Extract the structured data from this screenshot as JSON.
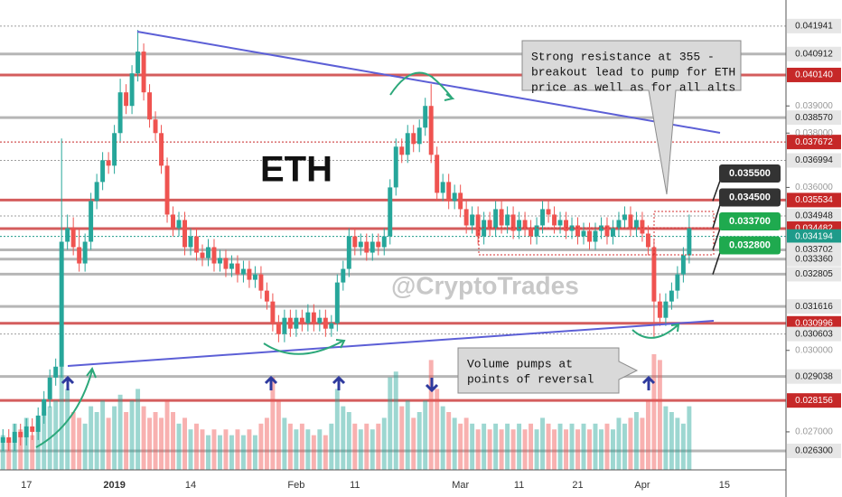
{
  "chart_data": {
    "type": "candlestick",
    "title": "ETH",
    "watermark": "@CryptoTrades",
    "up_color": "#26a69a",
    "down_color": "#ef5350",
    "categories": [
      null,
      null,
      null,
      null,
      "17",
      null,
      null,
      null,
      null,
      null,
      null,
      null,
      null,
      null,
      null,
      null,
      null,
      null,
      null,
      "2019",
      null,
      null,
      null,
      null,
      null,
      null,
      null,
      null,
      null,
      null,
      null,
      null,
      "14",
      null,
      null,
      null,
      null,
      null,
      null,
      null,
      null,
      null,
      null,
      null,
      null,
      null,
      null,
      null,
      null,
      null,
      "Feb",
      null,
      null,
      null,
      null,
      null,
      null,
      null,
      null,
      null,
      "11",
      null,
      null,
      null,
      null,
      null,
      null,
      null,
      null,
      null,
      null,
      null,
      null,
      null,
      null,
      null,
      null,
      null,
      "Mar",
      null,
      null,
      null,
      null,
      null,
      null,
      null,
      null,
      null,
      "11",
      null,
      null,
      null,
      null,
      null,
      null,
      null,
      null,
      null,
      "21",
      null,
      null,
      null,
      null,
      null,
      null,
      null,
      null,
      null,
      null,
      "Apr",
      null,
      null,
      null,
      null,
      null,
      null,
      null,
      null,
      null,
      null,
      null,
      null,
      null,
      "15",
      null,
      null,
      null,
      null,
      null,
      null,
      null,
      null,
      null,
      null
    ],
    "open": [
      0.0266,
      0.0268,
      0.0266,
      0.027,
      0.0268,
      0.0272,
      0.027,
      0.0276,
      0.0282,
      0.029,
      0.0294,
      0.034,
      0.0345,
      0.0338,
      0.0332,
      0.034,
      0.0355,
      0.0362,
      0.037,
      0.0368,
      0.038,
      0.0395,
      0.039,
      0.0402,
      0.041,
      0.0395,
      0.0385,
      0.038,
      0.0368,
      0.035,
      0.0345,
      0.0348,
      0.0338,
      0.0342,
      0.0336,
      0.0334,
      0.0338,
      0.0332,
      0.0334,
      0.033,
      0.0332,
      0.0328,
      0.033,
      0.0326,
      0.0328,
      0.0322,
      0.0318,
      0.031,
      0.0306,
      0.0312,
      0.0308,
      0.0312,
      0.031,
      0.0314,
      0.031,
      0.0312,
      0.0308,
      0.031,
      0.0325,
      0.033,
      0.0342,
      0.0338,
      0.034,
      0.0336,
      0.034,
      0.0338,
      0.0342,
      0.036,
      0.0375,
      0.0372,
      0.038,
      0.0376,
      0.0382,
      0.039,
      0.0372,
      0.0358,
      0.0362,
      0.0355,
      0.0358,
      0.0352,
      0.0346,
      0.035,
      0.0342,
      0.0348,
      0.0345,
      0.0352,
      0.0346,
      0.035,
      0.0344,
      0.0348,
      0.0345,
      0.0342,
      0.0346,
      0.0352,
      0.035,
      0.0346,
      0.0348,
      0.0344,
      0.0346,
      0.0342,
      0.0344,
      0.034,
      0.0344,
      0.0346,
      0.0342,
      0.0345,
      0.0348,
      0.035,
      0.0345,
      0.0348,
      0.0343,
      0.0338,
      0.0318,
      0.0312,
      0.0318,
      0.0322,
      0.0328,
      0.0335,
      null,
      null,
      null,
      null,
      null,
      null,
      null,
      null,
      null,
      null,
      null,
      null,
      null,
      null,
      null,
      null
    ],
    "high": [
      0.0271,
      0.0271,
      0.0273,
      0.0273,
      0.0275,
      0.0275,
      0.0279,
      0.0285,
      0.0293,
      0.0297,
      0.0378,
      0.035,
      0.0349,
      0.0345,
      0.0343,
      0.0358,
      0.0365,
      0.0373,
      0.0373,
      0.0383,
      0.04,
      0.0398,
      0.0405,
      0.0418,
      0.0413,
      0.0398,
      0.0388,
      0.0383,
      0.0371,
      0.0353,
      0.0351,
      0.0351,
      0.0345,
      0.0345,
      0.0339,
      0.0341,
      0.0341,
      0.0337,
      0.0337,
      0.0335,
      0.0335,
      0.0333,
      0.0333,
      0.0331,
      0.0331,
      0.0325,
      0.0321,
      0.0313,
      0.0315,
      0.0315,
      0.0315,
      0.0315,
      0.0317,
      0.0317,
      0.0315,
      0.0315,
      0.0313,
      0.0328,
      0.0333,
      0.0345,
      0.0345,
      0.0343,
      0.0343,
      0.0343,
      0.0343,
      0.0345,
      0.0363,
      0.0378,
      0.0378,
      0.0383,
      0.0383,
      0.0385,
      0.0393,
      0.0398,
      0.0375,
      0.0365,
      0.0365,
      0.0361,
      0.0361,
      0.0355,
      0.0353,
      0.0353,
      0.0351,
      0.0351,
      0.0355,
      0.0355,
      0.0353,
      0.0353,
      0.0351,
      0.0351,
      0.0348,
      0.0349,
      0.0355,
      0.0355,
      0.0353,
      0.0351,
      0.0351,
      0.0349,
      0.0349,
      0.0347,
      0.0347,
      0.0347,
      0.0349,
      0.0349,
      0.0348,
      0.0351,
      0.0353,
      0.0353,
      0.0351,
      0.0351,
      0.0346,
      0.0341,
      0.0321,
      0.0321,
      0.0325,
      0.0331,
      0.0338,
      0.035,
      null,
      null,
      null,
      null,
      null,
      null,
      null,
      null,
      null,
      null,
      null,
      null,
      null,
      null,
      null,
      null
    ],
    "low": [
      0.0263,
      0.0263,
      0.0263,
      0.0265,
      0.0265,
      0.0267,
      0.0267,
      0.0273,
      0.0279,
      0.0287,
      0.029,
      0.0337,
      0.0335,
      0.0329,
      0.0329,
      0.0337,
      0.0352,
      0.0359,
      0.0365,
      0.0365,
      0.0377,
      0.0387,
      0.0387,
      0.0399,
      0.0392,
      0.0382,
      0.0377,
      0.0365,
      0.0347,
      0.0342,
      0.0342,
      0.0335,
      0.0335,
      0.0333,
      0.0331,
      0.0331,
      0.0329,
      0.0329,
      0.0327,
      0.0327,
      0.0325,
      0.0325,
      0.0323,
      0.0323,
      0.0319,
      0.0315,
      0.0307,
      0.0303,
      0.0303,
      0.0305,
      0.0305,
      0.0307,
      0.0307,
      0.0307,
      0.0307,
      0.0305,
      0.0305,
      0.0307,
      0.0322,
      0.0327,
      0.0335,
      0.0335,
      0.0333,
      0.0333,
      0.0335,
      0.0335,
      0.0339,
      0.0357,
      0.0369,
      0.0369,
      0.0373,
      0.0373,
      0.0379,
      0.0369,
      0.0355,
      0.0355,
      0.0352,
      0.0352,
      0.0349,
      0.0343,
      0.0343,
      0.0339,
      0.0339,
      0.0342,
      0.0342,
      0.0343,
      0.0343,
      0.0341,
      0.0341,
      0.0342,
      0.0339,
      0.0339,
      0.0343,
      0.0347,
      0.0343,
      0.0343,
      0.0341,
      0.0341,
      0.0339,
      0.0339,
      0.0337,
      0.0337,
      0.0341,
      0.0339,
      0.0339,
      0.0342,
      0.0345,
      0.0342,
      0.0342,
      0.034,
      0.0335,
      0.0305,
      0.0309,
      0.0309,
      0.0315,
      0.0319,
      0.0325,
      0.0332,
      null,
      null,
      null,
      null,
      null,
      null,
      null,
      null,
      null,
      null,
      null,
      null,
      null,
      null,
      null,
      null
    ],
    "close": [
      0.0268,
      0.0266,
      0.027,
      0.0268,
      0.0272,
      0.027,
      0.0276,
      0.0282,
      0.029,
      0.0294,
      0.034,
      0.0345,
      0.0338,
      0.0332,
      0.034,
      0.0355,
      0.0362,
      0.037,
      0.0368,
      0.038,
      0.0395,
      0.039,
      0.0402,
      0.041,
      0.0395,
      0.0385,
      0.038,
      0.0368,
      0.035,
      0.0345,
      0.0348,
      0.0338,
      0.0342,
      0.0336,
      0.0334,
      0.0338,
      0.0332,
      0.0334,
      0.033,
      0.0332,
      0.0328,
      0.033,
      0.0326,
      0.0328,
      0.0322,
      0.0318,
      0.031,
      0.0306,
      0.0312,
      0.0308,
      0.0312,
      0.031,
      0.0314,
      0.031,
      0.0312,
      0.0308,
      0.031,
      0.0325,
      0.033,
      0.0342,
      0.0338,
      0.034,
      0.0336,
      0.034,
      0.0338,
      0.0342,
      0.036,
      0.0375,
      0.0372,
      0.038,
      0.0376,
      0.0382,
      0.039,
      0.0372,
      0.0358,
      0.0362,
      0.0355,
      0.0358,
      0.0352,
      0.0346,
      0.035,
      0.0342,
      0.0348,
      0.0345,
      0.0352,
      0.0346,
      0.035,
      0.0344,
      0.0348,
      0.0345,
      0.0342,
      0.0346,
      0.0352,
      0.035,
      0.0346,
      0.0348,
      0.0344,
      0.0346,
      0.0342,
      0.0344,
      0.034,
      0.0344,
      0.0346,
      0.0342,
      0.0345,
      0.0348,
      0.035,
      0.0345,
      0.0348,
      0.0343,
      0.0338,
      0.0318,
      0.0312,
      0.0318,
      0.0322,
      0.0328,
      0.0335,
      0.0345,
      null,
      null,
      null,
      null,
      null,
      null,
      null,
      null,
      null,
      null,
      null,
      null,
      null,
      null,
      null,
      null
    ],
    "volume": [
      30,
      25,
      40,
      35,
      45,
      30,
      40,
      50,
      55,
      60,
      95,
      70,
      50,
      45,
      40,
      55,
      50,
      60,
      45,
      55,
      65,
      50,
      60,
      70,
      55,
      45,
      50,
      45,
      60,
      50,
      40,
      45,
      35,
      40,
      35,
      30,
      35,
      30,
      35,
      30,
      35,
      30,
      35,
      30,
      40,
      45,
      80,
      60,
      45,
      40,
      35,
      40,
      35,
      30,
      35,
      30,
      40,
      70,
      55,
      50,
      40,
      35,
      40,
      35,
      40,
      45,
      80,
      85,
      55,
      60,
      45,
      50,
      60,
      95,
      70,
      55,
      50,
      45,
      40,
      45,
      40,
      35,
      40,
      35,
      40,
      35,
      40,
      35,
      40,
      35,
      40,
      35,
      45,
      40,
      35,
      40,
      35,
      40,
      35,
      40,
      35,
      40,
      35,
      40,
      35,
      45,
      40,
      45,
      50,
      45,
      60,
      100,
      95,
      55,
      50,
      45,
      40,
      55,
      null,
      null,
      null,
      null,
      null,
      null,
      null,
      null,
      null,
      null,
      null,
      null,
      null,
      null,
      null,
      null
    ],
    "ylim": [
      0.0256,
      0.0429
    ],
    "yticks": [
      {
        "value": 0.039,
        "label": "0.039000"
      },
      {
        "value": 0.038,
        "label": "0.038000"
      },
      {
        "value": 0.036,
        "label": "0.036000"
      },
      {
        "value": 0.03,
        "label": "0.030000"
      },
      {
        "value": 0.027,
        "label": "0.027000"
      }
    ],
    "levels": [
      {
        "value": 0.041941,
        "label": "0.041941",
        "color": "#9e9e9e",
        "dashed": true
      },
      {
        "value": 0.040912,
        "label": "0.040912",
        "color": "#9e9e9e",
        "dashed": false
      },
      {
        "value": 0.04014,
        "label": "0.040140",
        "color": "#c62828",
        "dashed": false
      },
      {
        "value": 0.03857,
        "label": "0.038570",
        "color": "#9e9e9e",
        "dashed": false
      },
      {
        "value": 0.037672,
        "label": "0.037672",
        "color": "#c62828",
        "dashed": true
      },
      {
        "value": 0.036994,
        "label": "0.036994",
        "color": "#9e9e9e",
        "dashed": true
      },
      {
        "value": 0.035534,
        "label": "0.035534",
        "color": "#c62828",
        "dashed": false
      },
      {
        "value": 0.034948,
        "label": "0.034948",
        "color": "#9e9e9e",
        "dashed": true
      },
      {
        "value": 0.034482,
        "label": "0.034482",
        "color": "#c62828",
        "dashed": false
      },
      {
        "value": 0.034194,
        "label": "0.034194",
        "color": "#1e9b8a",
        "dashed": true
      },
      {
        "value": 0.033702,
        "label": "0.033702",
        "color": "#9e9e9e",
        "dashed": false
      },
      {
        "value": 0.03336,
        "label": "0.033360",
        "color": "#9e9e9e",
        "dashed": false
      },
      {
        "value": 0.032805,
        "label": "0.032805",
        "color": "#9e9e9e",
        "dashed": false
      },
      {
        "value": 0.031616,
        "label": "0.031616",
        "color": "#9e9e9e",
        "dashed": false
      },
      {
        "value": 0.030996,
        "label": "0.030996",
        "color": "#c62828",
        "dashed": false
      },
      {
        "value": 0.030603,
        "label": "0.030603",
        "color": "#9e9e9e",
        "dashed": true
      },
      {
        "value": 0.029038,
        "label": "0.029038",
        "color": "#9e9e9e",
        "dashed": false
      },
      {
        "value": 0.028156,
        "label": "0.028156",
        "color": "#c62828",
        "dashed": false
      },
      {
        "value": 0.0263,
        "label": "0.026300",
        "color": "#9e9e9e",
        "dashed": false
      }
    ],
    "callouts": [
      {
        "value": 0.0355,
        "label": "0.035500",
        "color": "#333333"
      },
      {
        "value": 0.0345,
        "label": "0.034500",
        "color": "#333333"
      },
      {
        "value": 0.0337,
        "label": "0.033700",
        "color": "#1faa4f"
      },
      {
        "value": 0.0328,
        "label": "0.032800",
        "color": "#1faa4f"
      }
    ],
    "annotations": [
      {
        "lines": [
          "Strong resistance at 355 -",
          "breakout lead to pump for ETH",
          "price as well as for all alts"
        ]
      },
      {
        "lines": [
          "Volume pumps at",
          "points of reversal"
        ]
      }
    ]
  }
}
